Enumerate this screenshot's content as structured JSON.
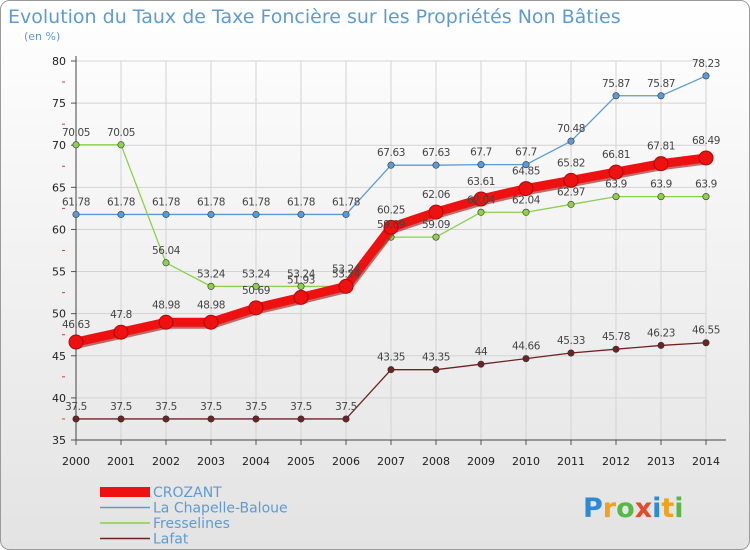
{
  "chart_data": {
    "type": "line",
    "title": "Evolution du Taux de Taxe Foncière sur les Propriétés Non Bâties",
    "unit_label": "(en %)",
    "x": [
      "2000",
      "2001",
      "2002",
      "2003",
      "2004",
      "2005",
      "2006",
      "2007",
      "2008",
      "2009",
      "2010",
      "2011",
      "2012",
      "2013",
      "2014"
    ],
    "yticks": [
      "35",
      "40",
      "45",
      "50",
      "55",
      "60",
      "65",
      "70",
      "75",
      "80"
    ],
    "ylim": [
      35,
      80
    ],
    "grid": true,
    "legend_position": "bottom-left",
    "series": [
      {
        "name": "La Chapelle-Baloue",
        "color": "#5b9bd5",
        "values": [
          61.78,
          61.78,
          61.78,
          61.78,
          61.78,
          61.78,
          61.78,
          67.63,
          67.63,
          67.7,
          67.7,
          70.48,
          75.87,
          75.87,
          78.23
        ],
        "labels": [
          "61.78",
          "61.78",
          "61.78",
          "61.78",
          "61.78",
          "61.78",
          "61.78",
          "67.63",
          "67.63",
          "67.7",
          "67.7",
          "70.48",
          "75.87",
          "75.87",
          "78.23"
        ]
      },
      {
        "name": "Fresselines",
        "color": "#8cd04d",
        "values": [
          70.05,
          70.05,
          56.04,
          53.24,
          53.24,
          53.24,
          53.24,
          59.09,
          59.09,
          62.04,
          62.04,
          62.97,
          63.9,
          63.9,
          63.9
        ],
        "labels": [
          "70.05",
          "70.05",
          "56.04",
          "53.24",
          "53.24",
          "53.24",
          "53.24",
          "59.09",
          "59.09",
          "62.04",
          "62.04",
          "62.97",
          "63.9",
          "63.9",
          "63.9"
        ]
      },
      {
        "name": "Lafat",
        "color": "#6b2424",
        "values": [
          37.5,
          37.5,
          37.5,
          37.5,
          37.5,
          37.5,
          37.5,
          43.35,
          43.35,
          44,
          44.66,
          45.33,
          45.78,
          46.23,
          46.55
        ],
        "labels": [
          "37.5",
          "37.5",
          "37.5",
          "37.5",
          "37.5",
          "37.5",
          "37.5",
          "43.35",
          "43.35",
          "44",
          "44.66",
          "45.33",
          "45.78",
          "46.23",
          "46.55"
        ]
      },
      {
        "name": "CROZANT",
        "color": "#ee1111",
        "values": [
          46.63,
          47.8,
          48.98,
          48.98,
          50.69,
          51.93,
          53.24,
          60.25,
          62.06,
          63.61,
          64.85,
          65.82,
          66.81,
          67.81,
          68.49
        ],
        "labels": [
          "46.63",
          "47.8",
          "48.98",
          "48.98",
          "50.69",
          "51.93",
          "53.24",
          "60.25",
          "62.06",
          "63.61",
          "64.85",
          "65.82",
          "66.81",
          "67.81",
          "68.49"
        ]
      }
    ],
    "legend": [
      "CROZANT",
      "La Chapelle-Baloue",
      "Fresselines",
      "Lafat"
    ]
  },
  "logo": {
    "text": "Proxiti",
    "letters": [
      {
        "ch": "P",
        "color": "#2e8ad8"
      },
      {
        "ch": "r",
        "color": "#f0a21b"
      },
      {
        "ch": "o",
        "color": "#57b847"
      },
      {
        "ch": "x",
        "color": "#e54b2a"
      },
      {
        "ch": "i",
        "color": "#2e8ad8"
      },
      {
        "ch": "t",
        "color": "#f0a21b"
      },
      {
        "ch": "i",
        "color": "#57b847"
      }
    ]
  }
}
